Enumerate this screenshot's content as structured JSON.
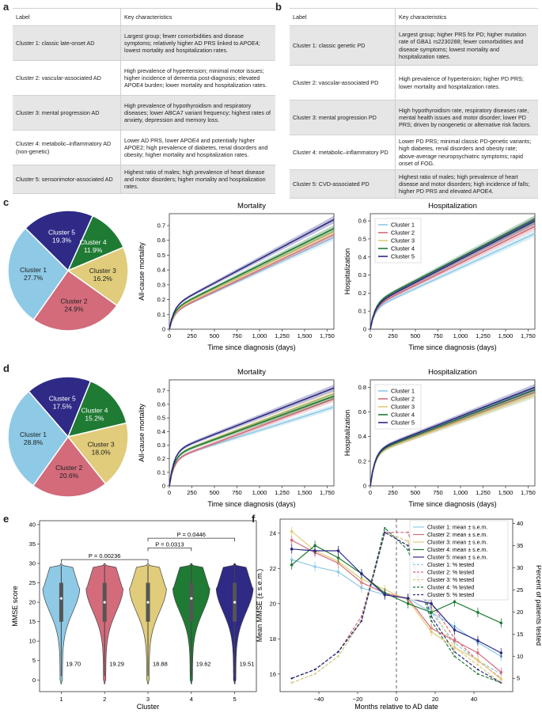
{
  "panels": {
    "a": "a",
    "b": "b",
    "c": "c",
    "d": "d",
    "e": "e",
    "f": "f"
  },
  "table_a": {
    "header": {
      "label": "Label",
      "chars": "Key characteristics"
    },
    "rows": [
      {
        "label": "Cluster 1: classic late-onset AD",
        "chars": "Largest group; fewer comorbidities and disease symptoms; relatively higher AD PRS linked to APOE4; lowest mortality and hospitalization rates."
      },
      {
        "label": "Cluster 2: vascular-associated AD",
        "chars": "High prevalence of hypertension; minimal motor issues; higher incidence of dementia post-diagnosis; elevated APOE4 burden; lower mortality and hospitalization rates."
      },
      {
        "label": "Cluster 3: mental progression AD",
        "chars": "High prevalence of hypothyroidism and respiratory diseases; lower ABCA7 variant frequency; highest rates of anxiety, depression and memory loss."
      },
      {
        "label": "Cluster 4: metabolic–inflammatory AD (non-genetic)",
        "chars": "Lower AD PRS, lower APOE4 and potentially higher APOE2; high prevalence of diabetes, renal disorders and obesity; higher mortality and hospitalization rates."
      },
      {
        "label": "Cluster 5: sensorimotor-associated AD",
        "chars": "Highest ratio of males; high prevalence of heart disease and motor disorders; higher mortality and hospitalization rates."
      }
    ]
  },
  "table_b": {
    "header": {
      "label": "Label",
      "chars": "Key characteristics"
    },
    "rows": [
      {
        "label": "Cluster 1: classic genetic PD",
        "chars": "Largest group; higher PRS for PD; higher mutation rate of GBA1 rs2230288; fewer comorbidities and disease symptoms; lowest mortality and hospitalization rates."
      },
      {
        "label": "Cluster 2: vascular-associated PD",
        "chars": "High prevalence of hypertension; higher PD PRS; lower mortality and hospitalization rates."
      },
      {
        "label": "Cluster 3: mental progression PD",
        "chars": "High hypothyroidism rate, respiratory diseases rate, mental health issues and motor disorder; lower PD PRS; driven by nongenetic or alternative risk factors."
      },
      {
        "label": "Cluster 4: metabolic–inflammatory PD",
        "chars": "Lower PD PRS; minimal classic PD-genetic variants; high diabetes, renal disorders and obesity rate; above-average neuropsychiatric symptoms; rapid onset of FOG."
      },
      {
        "label": "Cluster 5: CVD-associated PD",
        "chars": "Highest ratio of males; high prevalence of heart disease and motor disorders; high incidence of falls; higher PD PRS and elevated APOE4."
      }
    ]
  },
  "colors": {
    "c1": "#8ecae6",
    "c2": "#d36b7b",
    "c3": "#e0cc7a",
    "c4": "#1f7a33",
    "c5": "#2e2a86"
  },
  "cluster_names": [
    "Cluster 1",
    "Cluster 2",
    "Cluster 3",
    "Cluster 4",
    "Cluster 5"
  ],
  "chart_data": [
    {
      "id": "pie_c",
      "type": "pie",
      "labels": [
        "Cluster 1",
        "Cluster 2",
        "Cluster 3",
        "Cluster 4",
        "Cluster 5"
      ],
      "values": [
        27.7,
        24.9,
        16.2,
        11.9,
        19.3
      ],
      "value_labels": [
        "27.7%",
        "24.9%",
        "16.2%",
        "11.9%",
        "19.3%"
      ]
    },
    {
      "id": "mort_c",
      "type": "line",
      "title": "Mortality",
      "xlabel": "Time since diagnosis (days)",
      "ylabel": "All-cause mortality",
      "xlim": [
        0,
        1825
      ],
      "ylim": [
        0,
        0.78
      ],
      "xticks": [
        0,
        250,
        500,
        750,
        1000,
        1250,
        1500,
        1750
      ],
      "xtick_labels": [
        "0",
        "250",
        "500",
        "750",
        "1,000",
        "1,250",
        "1,500",
        "1,750"
      ],
      "yticks": [
        0,
        0.1,
        0.2,
        0.3,
        0.4,
        0.5,
        0.6,
        0.7
      ],
      "ytick_labels": [
        "0",
        "0.1",
        "0.2",
        "0.3",
        "0.4",
        "0.5",
        "0.6",
        "0.7"
      ],
      "series": [
        {
          "name": "Cluster 1",
          "final": 0.62,
          "early": 0.11
        },
        {
          "name": "Cluster 2",
          "final": 0.64,
          "early": 0.11
        },
        {
          "name": "Cluster 3",
          "final": 0.66,
          "early": 0.12
        },
        {
          "name": "Cluster 4",
          "final": 0.68,
          "early": 0.13
        },
        {
          "name": "Cluster 5",
          "final": 0.74,
          "early": 0.15
        }
      ]
    },
    {
      "id": "hosp_c",
      "type": "line",
      "title": "Hospitalization",
      "xlabel": "Time since diagnosis (days)",
      "ylabel": "Hospitalization",
      "xlim": [
        0,
        1825
      ],
      "ylim": [
        0,
        0.64
      ],
      "xticks": [
        0,
        250,
        500,
        750,
        1000,
        1250,
        1500,
        1750
      ],
      "xtick_labels": [
        "0",
        "250",
        "500",
        "750",
        "1,000",
        "1,250",
        "1,500",
        "1,750"
      ],
      "yticks": [
        0,
        0.1,
        0.2,
        0.3,
        0.4,
        0.5,
        0.6
      ],
      "ytick_labels": [
        "0",
        "0.1",
        "0.2",
        "0.3",
        "0.4",
        "0.5",
        "0.6"
      ],
      "legend": "top-left",
      "series": [
        {
          "name": "Cluster 1",
          "final": 0.53,
          "early": 0.11
        },
        {
          "name": "Cluster 2",
          "final": 0.57,
          "early": 0.12
        },
        {
          "name": "Cluster 3",
          "final": 0.6,
          "early": 0.13
        },
        {
          "name": "Cluster 4",
          "final": 0.61,
          "early": 0.14
        },
        {
          "name": "Cluster 5",
          "final": 0.6,
          "early": 0.13
        }
      ]
    },
    {
      "id": "pie_d",
      "type": "pie",
      "labels": [
        "Cluster 1",
        "Cluster 2",
        "Cluster 3",
        "Cluster 4",
        "Cluster 5"
      ],
      "values": [
        28.8,
        20.6,
        18.0,
        15.2,
        17.5
      ],
      "value_labels": [
        "28.8%",
        "20.6%",
        "18.0%",
        "15.2%",
        "17.5%"
      ]
    },
    {
      "id": "mort_d",
      "type": "line",
      "title": "Mortality",
      "xlabel": "Time since diagnosis (days)",
      "ylabel": "All-cause mortality",
      "xlim": [
        0,
        1825
      ],
      "ylim": [
        0,
        0.78
      ],
      "xticks": [
        0,
        250,
        500,
        750,
        1000,
        1250,
        1500,
        1750
      ],
      "xtick_labels": [
        "0",
        "250",
        "500",
        "750",
        "1,000",
        "1,250",
        "1,500",
        "1,750"
      ],
      "yticks": [
        0,
        0.1,
        0.2,
        0.3,
        0.4,
        0.5,
        0.6,
        0.7
      ],
      "ytick_labels": [
        "0",
        "0.1",
        "0.2",
        "0.3",
        "0.4",
        "0.5",
        "0.6",
        "0.7"
      ],
      "series": [
        {
          "name": "Cluster 1",
          "final": 0.58,
          "early": 0.2
        },
        {
          "name": "Cluster 2",
          "final": 0.64,
          "early": 0.19
        },
        {
          "name": "Cluster 3",
          "final": 0.68,
          "early": 0.22
        },
        {
          "name": "Cluster 4",
          "final": 0.66,
          "early": 0.22
        },
        {
          "name": "Cluster 5",
          "final": 0.72,
          "early": 0.25
        }
      ]
    },
    {
      "id": "hosp_d",
      "type": "line",
      "title": "Hospitalization",
      "xlabel": "Time since diagnosis (days)",
      "ylabel": "Hospitalization",
      "xlim": [
        0,
        1825
      ],
      "ylim": [
        0,
        0.86
      ],
      "xticks": [
        0,
        250,
        500,
        750,
        1000,
        1250,
        1500,
        1750
      ],
      "xtick_labels": [
        "0",
        "250",
        "500",
        "750",
        "1,000",
        "1,250",
        "1,500",
        "1,750"
      ],
      "yticks": [
        0,
        0.2,
        0.4,
        0.6,
        0.8
      ],
      "ytick_labels": [
        "0",
        "0.2",
        "0.4",
        "0.6",
        "0.8"
      ],
      "legend": "top-left",
      "series": [
        {
          "name": "Cluster 1",
          "final": 0.74,
          "early": 0.26
        },
        {
          "name": "Cluster 2",
          "final": 0.76,
          "early": 0.26
        },
        {
          "name": "Cluster 3",
          "final": 0.74,
          "early": 0.26
        },
        {
          "name": "Cluster 4",
          "final": 0.78,
          "early": 0.27
        },
        {
          "name": "Cluster 5",
          "final": 0.8,
          "early": 0.28
        }
      ]
    },
    {
      "id": "violin_e",
      "type": "violin",
      "xlabel": "Cluster",
      "ylabel": "MMSE score",
      "categories": [
        "1",
        "2",
        "3",
        "4",
        "5"
      ],
      "ylim": [
        -3,
        41
      ],
      "yticks": [
        0,
        5,
        10,
        15,
        20,
        25,
        30,
        35,
        40
      ],
      "ytick_labels": [
        "0",
        "5",
        "10",
        "15",
        "20",
        "25",
        "30",
        "35",
        "40"
      ],
      "means": [
        19.7,
        19.29,
        18.88,
        19.62,
        19.51
      ],
      "mean_labels": [
        "19.70",
        "19.29",
        "18.88",
        "19.62",
        "19.51"
      ],
      "medians": [
        21,
        20,
        20,
        21,
        20
      ],
      "comparisons": [
        {
          "from": 1,
          "to": 3,
          "y": 31,
          "label": "P = 0.00236"
        },
        {
          "from": 3,
          "to": 4,
          "y": 34,
          "label": "P = 0.0313"
        },
        {
          "from": 3,
          "to": 5,
          "y": 36.5,
          "label": "P = 0.0446"
        }
      ]
    },
    {
      "id": "line_f",
      "type": "line",
      "xlabel": "Months relative to AD date",
      "ylabel": "Mean MMSE (± s.e.m.)",
      "y2label": "Percent of patients tested",
      "xlim": [
        -60,
        60
      ],
      "ylim": [
        15,
        24.8
      ],
      "y2lim": [
        2,
        41
      ],
      "xticks": [
        -40,
        -20,
        0,
        20,
        40
      ],
      "xtick_labels": [
        "−40",
        "−20",
        "0",
        "20",
        "40"
      ],
      "yticks": [
        16,
        18,
        20,
        22,
        24
      ],
      "ytick_labels": [
        "16",
        "18",
        "20",
        "22",
        "24"
      ],
      "y2ticks": [
        5,
        10,
        15,
        20,
        25,
        30,
        35,
        40
      ],
      "y2tick_labels": [
        "5",
        "10",
        "15",
        "20",
        "25",
        "30",
        "35",
        "40"
      ],
      "x": [
        -54,
        -42,
        -30,
        -18,
        -6,
        6,
        18,
        30,
        42,
        54
      ],
      "mean_series": [
        {
          "name": "Cluster 1: mean ± s.e.m.",
          "values": [
            22.5,
            22.1,
            21.8,
            20.9,
            20.5,
            20.3,
            19.5,
            18.7,
            17.8,
            17.0
          ]
        },
        {
          "name": "Cluster 2: mean ± s.e.m.",
          "values": [
            23.6,
            22.9,
            22.3,
            21.2,
            20.6,
            20.3,
            18.6,
            17.9,
            17.2,
            16.1
          ]
        },
        {
          "name": "Cluster 3: mean ± s.e.m.",
          "values": [
            24.1,
            23.0,
            22.4,
            21.4,
            20.8,
            20.2,
            18.4,
            17.5,
            16.8,
            15.7
          ]
        },
        {
          "name": "Cluster 4: mean ± s.e.m.",
          "values": [
            22.2,
            23.3,
            22.6,
            21.7,
            20.6,
            20.0,
            19.5,
            20.1,
            19.5,
            18.9
          ]
        },
        {
          "name": "Cluster 5: mean ± s.e.m.",
          "values": [
            23.1,
            23.0,
            23.0,
            21.7,
            20.5,
            20.3,
            20.0,
            18.5,
            17.9,
            17.2
          ]
        }
      ],
      "pct_series": [
        {
          "name": "Cluster 1: % tested",
          "values": [
            4,
            6,
            10,
            18,
            38,
            36,
            20,
            13,
            9,
            6
          ]
        },
        {
          "name": "Cluster 2: % tested",
          "values": [
            5,
            7,
            11,
            19,
            38,
            38,
            22,
            14,
            9,
            5
          ]
        },
        {
          "name": "Cluster 3: % tested",
          "values": [
            4,
            6,
            10,
            18,
            38,
            36,
            21,
            12,
            8,
            4
          ]
        },
        {
          "name": "Cluster 4: % tested",
          "values": [
            5,
            7,
            11,
            18,
            39,
            34,
            18,
            10,
            6,
            4
          ]
        },
        {
          "name": "Cluster 5: % tested",
          "values": [
            5,
            7,
            11,
            18,
            38,
            35,
            19,
            11,
            7,
            4
          ]
        }
      ]
    }
  ]
}
